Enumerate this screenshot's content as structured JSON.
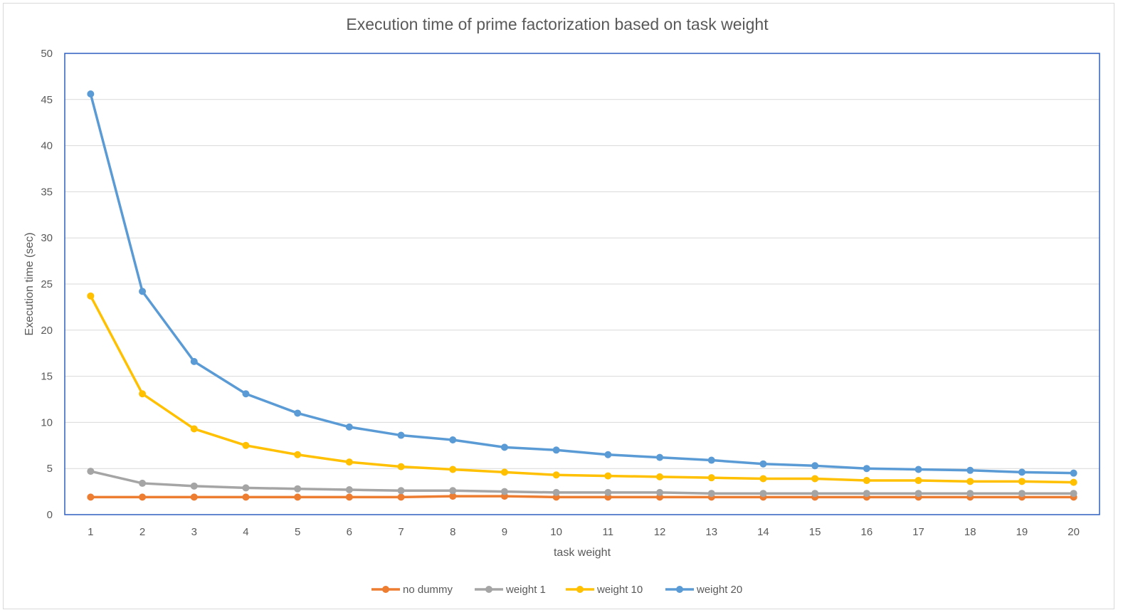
{
  "chart_data": {
    "type": "line",
    "title": "Execution time of prime factorization based on task weight",
    "xlabel": "task weight",
    "ylabel": "Execution time (sec)",
    "ylim": [
      0,
      50
    ],
    "yticks": [
      0,
      5,
      10,
      15,
      20,
      25,
      30,
      35,
      40,
      45,
      50
    ],
    "grid": true,
    "legend_position": "bottom",
    "categories": [
      "1",
      "2",
      "3",
      "4",
      "5",
      "6",
      "7",
      "8",
      "9",
      "10",
      "11",
      "12",
      "13",
      "14",
      "15",
      "16",
      "17",
      "18",
      "19",
      "20"
    ],
    "series": [
      {
        "name": "no dummy",
        "color": "#ED7D31",
        "values": [
          1.9,
          1.9,
          1.9,
          1.9,
          1.9,
          1.9,
          1.9,
          2.0,
          2.0,
          1.9,
          1.9,
          1.9,
          1.9,
          1.9,
          1.9,
          1.9,
          1.9,
          1.9,
          1.9,
          1.9
        ]
      },
      {
        "name": "weight 1",
        "color": "#A5A5A5",
        "values": [
          4.7,
          3.4,
          3.1,
          2.9,
          2.8,
          2.7,
          2.6,
          2.6,
          2.5,
          2.4,
          2.4,
          2.4,
          2.3,
          2.3,
          2.3,
          2.3,
          2.3,
          2.3,
          2.3,
          2.3
        ]
      },
      {
        "name": "weight 10",
        "color": "#FFC000",
        "values": [
          23.7,
          13.1,
          9.3,
          7.5,
          6.5,
          5.7,
          5.2,
          4.9,
          4.6,
          4.3,
          4.2,
          4.1,
          4.0,
          3.9,
          3.9,
          3.7,
          3.7,
          3.6,
          3.6,
          3.5
        ]
      },
      {
        "name": "weight 20",
        "color": "#5B9BD5",
        "values": [
          45.6,
          24.2,
          16.6,
          13.1,
          11.0,
          9.5,
          8.6,
          8.1,
          7.3,
          7.0,
          6.5,
          6.2,
          5.9,
          5.5,
          5.3,
          5.0,
          4.9,
          4.8,
          4.6,
          4.5
        ]
      }
    ]
  }
}
